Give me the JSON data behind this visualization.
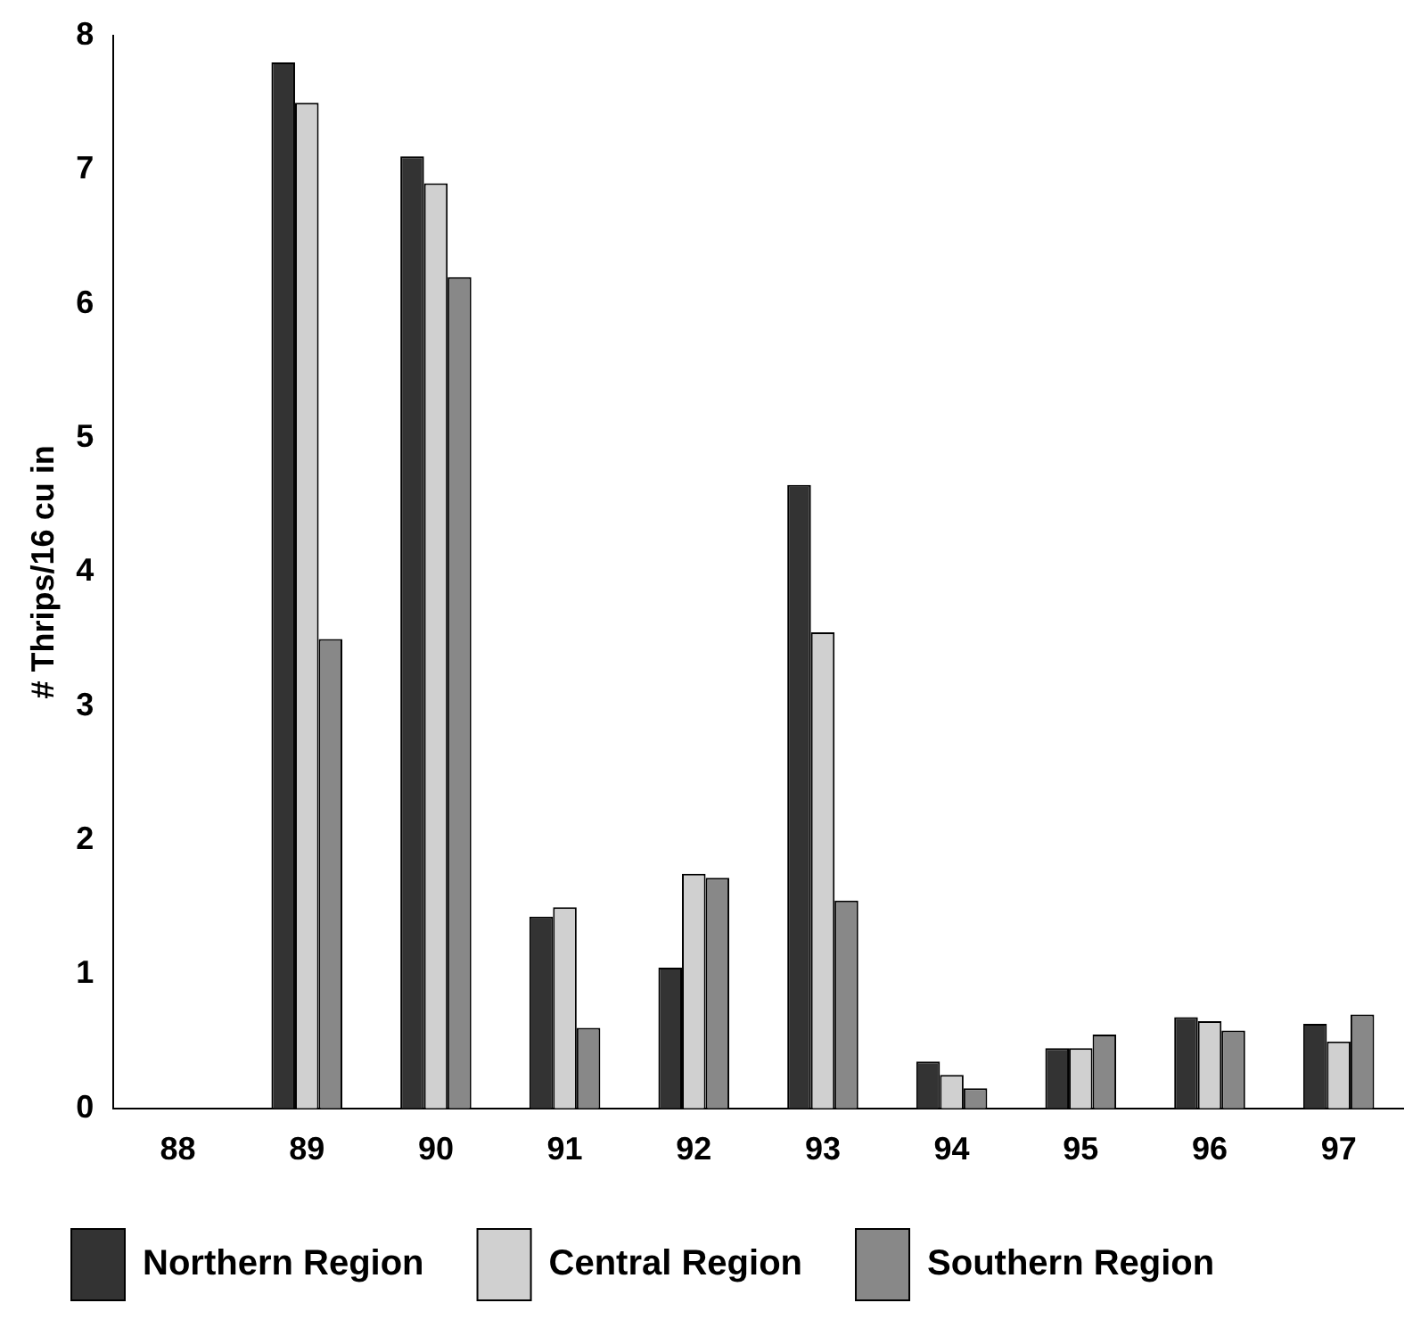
{
  "chart_data": {
    "type": "bar",
    "ylabel": "# Thrips/16 cu in",
    "categories": [
      "88",
      "89",
      "90",
      "91",
      "92",
      "93",
      "94",
      "95",
      "96",
      "97"
    ],
    "series": [
      {
        "name": "Northern Region",
        "color": "#333333",
        "values": [
          null,
          7.8,
          7.1,
          1.43,
          1.05,
          4.65,
          0.35,
          0.45,
          0.68,
          0.63
        ]
      },
      {
        "name": "Central Region",
        "color": "#d0d0d0",
        "values": [
          null,
          7.5,
          6.9,
          1.5,
          1.75,
          3.55,
          0.25,
          0.45,
          0.65,
          0.5
        ]
      },
      {
        "name": "Southern Region",
        "color": "#888888",
        "values": [
          null,
          3.5,
          6.2,
          0.6,
          1.72,
          1.55,
          0.15,
          0.55,
          0.58,
          0.7
        ]
      }
    ],
    "ylim": [
      0,
      8
    ],
    "yticks": [
      0,
      1,
      2,
      3,
      4,
      5,
      6,
      7,
      8
    ],
    "grid": false,
    "legend": "bottom"
  }
}
